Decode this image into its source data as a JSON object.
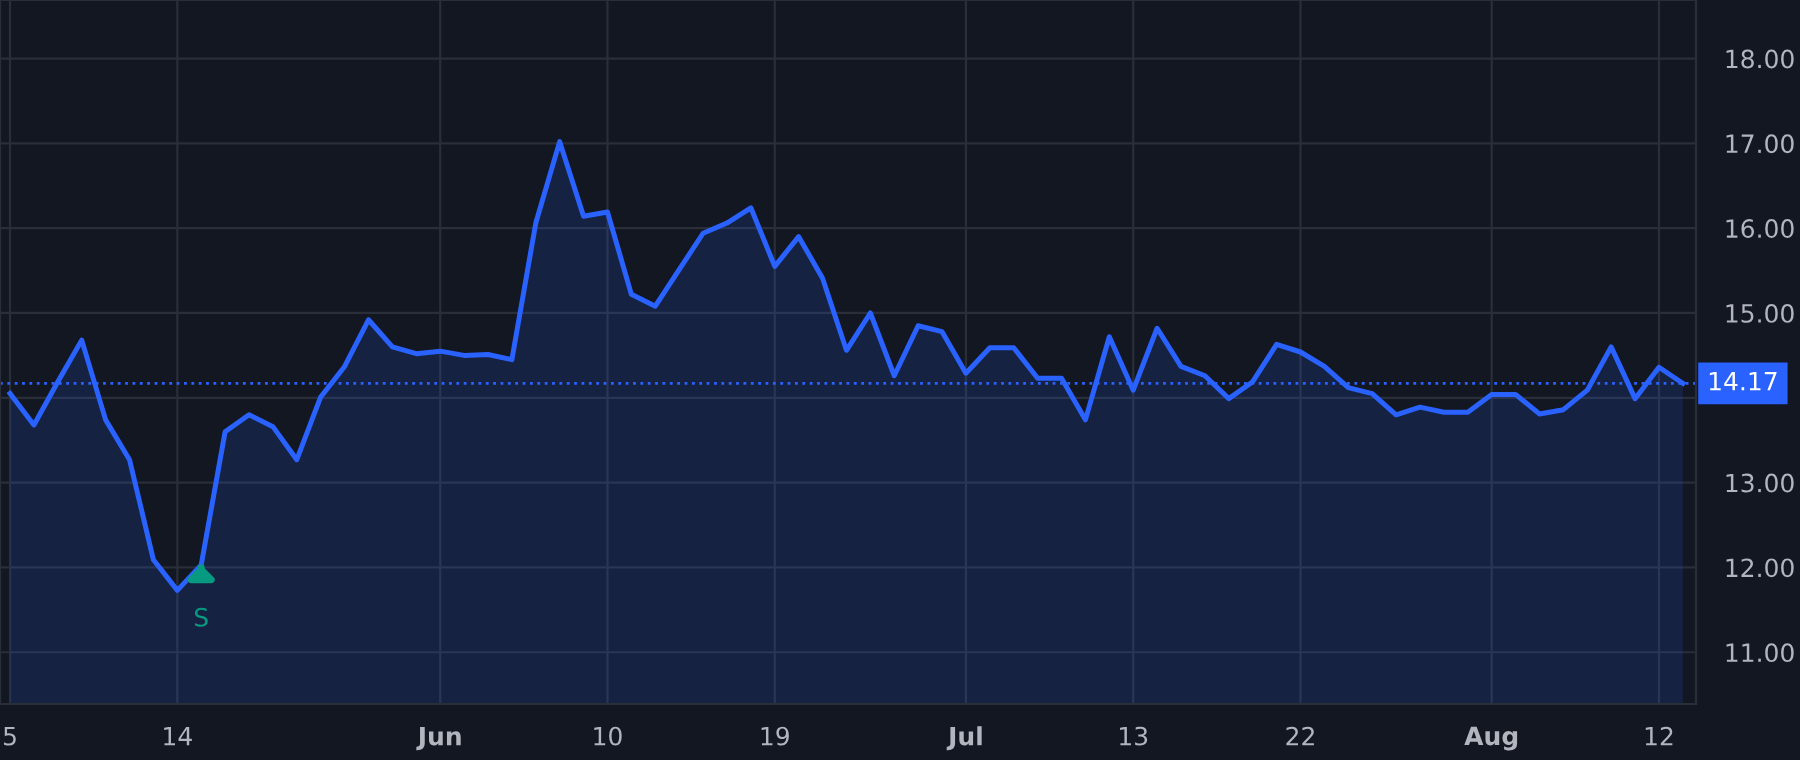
{
  "chart_data": {
    "type": "area",
    "categories": [
      "5",
      null,
      null,
      null,
      null,
      null,
      null,
      "14",
      null,
      null,
      null,
      null,
      null,
      null,
      null,
      null,
      null,
      null,
      "Jun",
      null,
      null,
      null,
      null,
      null,
      null,
      "10",
      null,
      null,
      null,
      null,
      null,
      null,
      "19",
      null,
      null,
      null,
      null,
      null,
      null,
      null,
      "Jul",
      null,
      null,
      null,
      null,
      null,
      null,
      "13",
      null,
      null,
      null,
      null,
      null,
      null,
      "22",
      null,
      null,
      null,
      null,
      null,
      null,
      null,
      "Aug",
      null,
      null,
      null,
      null,
      null,
      null,
      "12",
      null
    ],
    "values": [
      14.05,
      13.68,
      14.19,
      14.68,
      13.74,
      13.27,
      12.09,
      11.73,
      12.03,
      13.6,
      13.8,
      13.66,
      13.27,
      14.01,
      14.37,
      14.92,
      14.6,
      14.52,
      14.55,
      14.5,
      14.51,
      14.45,
      16.06,
      17.02,
      16.14,
      16.19,
      15.22,
      15.08,
      15.51,
      15.94,
      16.06,
      16.24,
      15.55,
      15.9,
      15.41,
      14.56,
      15.0,
      14.26,
      14.85,
      14.78,
      14.29,
      14.59,
      14.59,
      14.23,
      14.23,
      13.74,
      14.72,
      14.09,
      14.82,
      14.37,
      14.26,
      13.99,
      14.19,
      14.63,
      14.54,
      14.37,
      14.12,
      14.05,
      13.8,
      13.89,
      13.83,
      13.83,
      14.04,
      14.04,
      13.81,
      13.86,
      14.09,
      14.6,
      13.99,
      14.36,
      14.17
    ],
    "color": "#2962ff",
    "ylim": [
      10.39,
      18.69
    ],
    "yticks": [
      {
        "value": 11,
        "label": "11.00"
      },
      {
        "value": 12,
        "label": "12.00"
      },
      {
        "value": 13,
        "label": "13.00"
      },
      {
        "value": 14,
        "label": null
      },
      {
        "value": 15,
        "label": "15.00"
      },
      {
        "value": 16,
        "label": "16.00"
      },
      {
        "value": 17,
        "label": "17.00"
      },
      {
        "value": 18,
        "label": "18.00"
      }
    ],
    "grid": true,
    "ref_lines": [
      {
        "axis": "y",
        "value": 14.17,
        "label": "14.17",
        "color": "#2962ff",
        "line_style": "dotted"
      }
    ],
    "annotations": [
      {
        "text": "S",
        "y": 12.03
      }
    ]
  }
}
